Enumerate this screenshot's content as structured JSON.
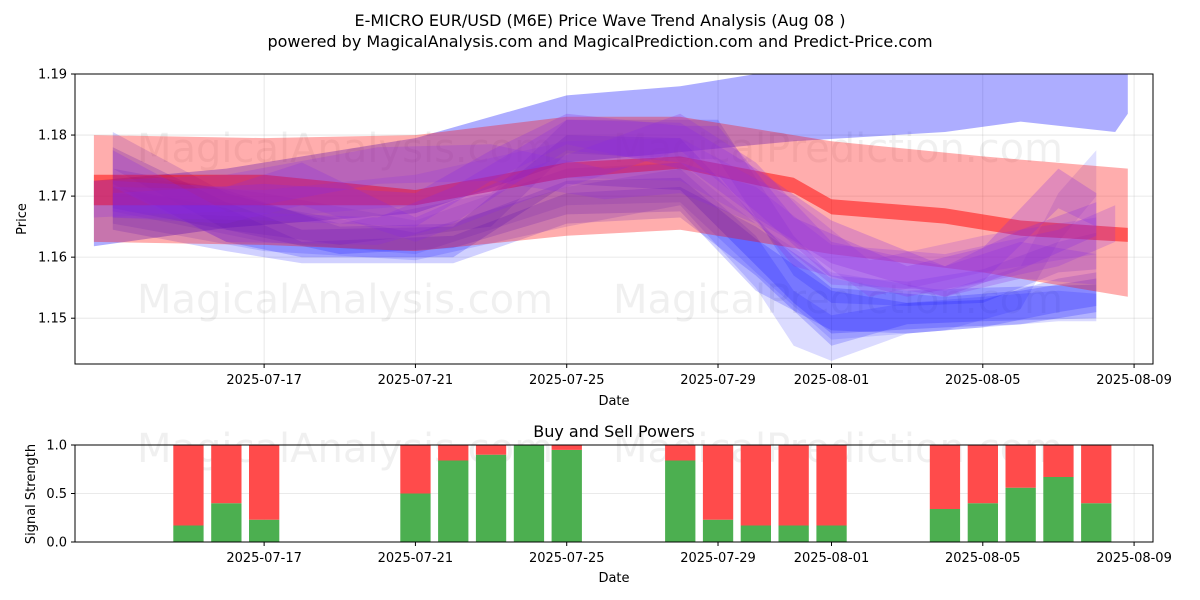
{
  "header": {
    "title": "E-MICRO EUR/USD (M6E) Price Wave Trend Analysis (Aug 08 )",
    "subtitle": "powered by MagicalAnalysis.com and MagicalPrediction.com and Predict-Price.com"
  },
  "watermarks": [
    "MagicalAnalysis.com",
    "MagicalPrediction.com"
  ],
  "chart_data": [
    {
      "type": "area",
      "xlabel": "Date",
      "ylabel": "Price",
      "ylim": [
        1.1425,
        1.19
      ],
      "xlim": [
        "2025-07-12T00:00",
        "2025-08-09T12:00"
      ],
      "yticks": [
        1.15,
        1.16,
        1.17,
        1.18,
        1.19
      ],
      "xticks": [
        "2025-07-17",
        "2025-07-21",
        "2025-07-25",
        "2025-07-29",
        "2025-08-01",
        "2025-08-05",
        "2025-08-09"
      ],
      "grid": true,
      "colors": {
        "blue": "#0000ff",
        "red": "#ff0000",
        "purple": "#8a2be2"
      },
      "series": [
        {
          "color": "#0000ff",
          "opacity": 0.32,
          "points": [
            [
              "2025-07-12T12:00",
              1.1725,
              1.1618
            ],
            [
              "2025-07-16",
              1.1745,
              1.1648
            ],
            [
              "2025-07-21",
              1.1795,
              1.1672
            ],
            [
              "2025-07-25",
              1.1865,
              1.1755
            ],
            [
              "2025-07-28",
              1.188,
              1.1772
            ],
            [
              "2025-07-31",
              1.191,
              1.179
            ],
            [
              "2025-08-04",
              1.192,
              1.1805
            ],
            [
              "2025-08-06",
              1.193,
              1.1822
            ],
            [
              "2025-08-08T12:00",
              1.194,
              1.1805
            ],
            [
              "2025-08-08T20:00",
              1.19,
              1.1835
            ]
          ]
        },
        {
          "color": "#0000ff",
          "opacity": 0.18,
          "points": [
            [
              "2025-07-13",
              1.1715,
              1.1645
            ],
            [
              "2025-07-16",
              1.168,
              1.161
            ],
            [
              "2025-07-18",
              1.1625,
              1.159
            ],
            [
              "2025-07-22",
              1.1635,
              1.159
            ],
            [
              "2025-07-25",
              1.1705,
              1.1655
            ],
            [
              "2025-07-28",
              1.1715,
              1.1665
            ],
            [
              "2025-07-30",
              1.165,
              1.157
            ],
            [
              "2025-08-01",
              1.1565,
              1.1455
            ],
            [
              "2025-08-03",
              1.1545,
              1.149
            ],
            [
              "2025-08-05",
              1.155,
              1.1495
            ],
            [
              "2025-08-08",
              1.1555,
              1.15
            ]
          ]
        },
        {
          "color": "#0000ff",
          "opacity": 0.18,
          "points": [
            [
              "2025-07-13",
              1.1745,
              1.168
            ],
            [
              "2025-07-16",
              1.171,
              1.1645
            ],
            [
              "2025-07-19",
              1.165,
              1.1605
            ],
            [
              "2025-07-22",
              1.1655,
              1.1615
            ],
            [
              "2025-07-25",
              1.1725,
              1.167
            ],
            [
              "2025-07-28",
              1.173,
              1.1675
            ],
            [
              "2025-07-30",
              1.163,
              1.1545
            ],
            [
              "2025-08-01",
              1.1545,
              1.148
            ],
            [
              "2025-08-03",
              1.1525,
              1.1475
            ],
            [
              "2025-08-05",
              1.153,
              1.1485
            ],
            [
              "2025-08-07",
              1.1565,
              1.151
            ],
            [
              "2025-08-08",
              1.1575,
              1.152
            ]
          ]
        },
        {
          "color": "#0000ff",
          "opacity": 0.2,
          "points": [
            [
              "2025-07-13",
              1.178,
              1.172
            ],
            [
              "2025-07-16",
              1.169,
              1.1625
            ],
            [
              "2025-07-18",
              1.1645,
              1.16
            ],
            [
              "2025-07-22",
              1.165,
              1.16
            ],
            [
              "2025-07-25",
              1.18,
              1.172
            ],
            [
              "2025-07-28",
              1.1795,
              1.171
            ],
            [
              "2025-07-31",
              1.16,
              1.1525
            ],
            [
              "2025-08-01",
              1.155,
              1.1475
            ],
            [
              "2025-08-04",
              1.1535,
              1.1485
            ],
            [
              "2025-08-06",
              1.1545,
              1.149
            ],
            [
              "2025-08-08",
              1.1565,
              1.151
            ]
          ]
        },
        {
          "color": "#0000ff",
          "opacity": 0.16,
          "points": [
            [
              "2025-07-13",
              1.1805,
              1.1745
            ],
            [
              "2025-07-16",
              1.1705,
              1.1645
            ],
            [
              "2025-07-19",
              1.1655,
              1.162
            ],
            [
              "2025-07-23",
              1.1705,
              1.165
            ],
            [
              "2025-07-25",
              1.1825,
              1.177
            ],
            [
              "2025-07-29",
              1.1825,
              1.176
            ],
            [
              "2025-07-31",
              1.1635,
              1.157
            ],
            [
              "2025-08-01",
              1.157,
              1.1525
            ],
            [
              "2025-08-03",
              1.156,
              1.152
            ],
            [
              "2025-08-05",
              1.158,
              1.1525
            ],
            [
              "2025-08-07",
              1.1625,
              1.1575
            ],
            [
              "2025-08-08",
              1.164,
              1.158
            ]
          ]
        },
        {
          "color": "#0000ff",
          "opacity": 0.14,
          "points": [
            [
              "2025-07-13",
              1.1705,
              1.1655
            ],
            [
              "2025-07-17",
              1.1685,
              1.161
            ],
            [
              "2025-07-21",
              1.164,
              1.1595
            ],
            [
              "2025-07-25",
              1.1715,
              1.165
            ],
            [
              "2025-07-28",
              1.1745,
              1.1685
            ],
            [
              "2025-07-30",
              1.1635,
              1.155
            ],
            [
              "2025-07-31",
              1.1545,
              1.1455
            ],
            [
              "2025-08-01",
              1.1505,
              1.143
            ],
            [
              "2025-08-03",
              1.1525,
              1.1475
            ],
            [
              "2025-08-07",
              1.1545,
              1.1495
            ],
            [
              "2025-08-08",
              1.154,
              1.1495
            ]
          ]
        },
        {
          "color": "#0000ff",
          "opacity": 0.12,
          "points": [
            [
              "2025-07-13",
              1.1735,
              1.1675
            ],
            [
              "2025-07-17",
              1.1705,
              1.1625
            ],
            [
              "2025-07-21",
              1.166,
              1.1605
            ],
            [
              "2025-07-25",
              1.1745,
              1.1685
            ],
            [
              "2025-07-28",
              1.1755,
              1.169
            ],
            [
              "2025-07-30",
              1.1655,
              1.1575
            ],
            [
              "2025-08-01",
              1.1575,
              1.1465
            ],
            [
              "2025-08-04",
              1.1545,
              1.148
            ],
            [
              "2025-08-06",
              1.1585,
              1.1515
            ],
            [
              "2025-08-07",
              1.1705,
              1.1625
            ],
            [
              "2025-08-08",
              1.1775,
              1.17
            ]
          ]
        },
        {
          "color": "#ff0000",
          "opacity": 0.32,
          "points": [
            [
              "2025-07-12T12:00",
              1.18,
              1.1625
            ],
            [
              "2025-07-17",
              1.1795,
              1.162
            ],
            [
              "2025-07-21",
              1.18,
              1.161
            ],
            [
              "2025-07-25",
              1.183,
              1.1635
            ],
            [
              "2025-07-28",
              1.183,
              1.1645
            ],
            [
              "2025-08-01",
              1.179,
              1.1605
            ],
            [
              "2025-08-05",
              1.1765,
              1.1575
            ],
            [
              "2025-08-08T20:00",
              1.1745,
              1.1535
            ]
          ]
        },
        {
          "color": "#ff0000",
          "opacity": 0.5,
          "points": [
            [
              "2025-07-12T12:00",
              1.1735,
              1.1685
            ],
            [
              "2025-07-17",
              1.1735,
              1.1685
            ],
            [
              "2025-07-21",
              1.171,
              1.1685
            ],
            [
              "2025-07-25",
              1.1755,
              1.173
            ],
            [
              "2025-07-28",
              1.1765,
              1.1745
            ],
            [
              "2025-07-31",
              1.173,
              1.1705
            ],
            [
              "2025-08-01",
              1.1695,
              1.167
            ],
            [
              "2025-08-04",
              1.168,
              1.1655
            ],
            [
              "2025-08-06",
              1.166,
              1.1635
            ],
            [
              "2025-08-08T20:00",
              1.1648,
              1.1625
            ]
          ]
        },
        {
          "color": "#8a2be2",
          "opacity": 0.26,
          "points": [
            [
              "2025-07-13",
              1.1775,
              1.1715
            ],
            [
              "2025-07-16",
              1.1675,
              1.1625
            ],
            [
              "2025-07-20",
              1.1665,
              1.162
            ],
            [
              "2025-07-22",
              1.1715,
              1.1655
            ],
            [
              "2025-07-25",
              1.1825,
              1.1775
            ],
            [
              "2025-07-28",
              1.182,
              1.1755
            ],
            [
              "2025-07-30",
              1.1745,
              1.1665
            ],
            [
              "2025-08-01",
              1.166,
              1.159
            ],
            [
              "2025-08-04",
              1.1585,
              1.1535
            ],
            [
              "2025-08-06",
              1.1645,
              1.158
            ],
            [
              "2025-08-08",
              1.169,
              1.1635
            ]
          ]
        },
        {
          "color": "#8a2be2",
          "opacity": 0.26,
          "points": [
            [
              "2025-07-13",
              1.1705,
              1.1665
            ],
            [
              "2025-07-17",
              1.172,
              1.166
            ],
            [
              "2025-07-21",
              1.1705,
              1.165
            ],
            [
              "2025-07-23",
              1.1775,
              1.1725
            ],
            [
              "2025-07-25",
              1.1835,
              1.1785
            ],
            [
              "2025-07-28",
              1.1815,
              1.1745
            ],
            [
              "2025-07-29",
              1.1815,
              1.1735
            ],
            [
              "2025-07-31",
              1.1665,
              1.1585
            ],
            [
              "2025-08-03",
              1.1585,
              1.1535
            ],
            [
              "2025-08-05",
              1.1615,
              1.156
            ],
            [
              "2025-08-07",
              1.1745,
              1.168
            ],
            [
              "2025-08-08",
              1.1705,
              1.165
            ]
          ]
        },
        {
          "color": "#8a2be2",
          "opacity": 0.24,
          "points": [
            [
              "2025-07-13",
              1.1725,
              1.1665
            ],
            [
              "2025-07-16",
              1.1715,
              1.1655
            ],
            [
              "2025-07-18",
              1.1755,
              1.1685
            ],
            [
              "2025-07-21",
              1.1665,
              1.1625
            ],
            [
              "2025-07-24",
              1.1745,
              1.1695
            ],
            [
              "2025-07-28",
              1.1835,
              1.1775
            ],
            [
              "2025-07-30",
              1.1755,
              1.1675
            ],
            [
              "2025-08-01",
              1.1625,
              1.1565
            ],
            [
              "2025-08-04",
              1.1585,
              1.1535
            ],
            [
              "2025-08-06",
              1.1625,
              1.1565
            ],
            [
              "2025-08-08",
              1.1605,
              1.1555
            ]
          ]
        },
        {
          "color": "#8a2be2",
          "opacity": 0.22,
          "points": [
            [
              "2025-07-12T12:00",
              1.1725,
              1.1665
            ],
            [
              "2025-07-16",
              1.1735,
              1.1675
            ],
            [
              "2025-07-20",
              1.178,
              1.172
            ],
            [
              "2025-07-23",
              1.1785,
              1.1725
            ],
            [
              "2025-07-26",
              1.1745,
              1.1695
            ],
            [
              "2025-07-28",
              1.1755,
              1.1705
            ],
            [
              "2025-07-30",
              1.1715,
              1.1655
            ],
            [
              "2025-08-01",
              1.162,
              1.1555
            ],
            [
              "2025-08-04",
              1.1605,
              1.1545
            ],
            [
              "2025-08-07",
              1.1645,
              1.1585
            ],
            [
              "2025-08-08T12:00",
              1.1685,
              1.1625
            ]
          ]
        },
        {
          "color": "#8a2be2",
          "opacity": 0.2,
          "points": [
            [
              "2025-07-13",
              1.1715,
              1.1675
            ],
            [
              "2025-07-17",
              1.171,
              1.1665
            ],
            [
              "2025-07-21",
              1.1735,
              1.1685
            ],
            [
              "2025-07-25",
              1.179,
              1.173
            ],
            [
              "2025-07-28",
              1.1795,
              1.1725
            ],
            [
              "2025-07-31",
              1.1695,
              1.1625
            ],
            [
              "2025-08-02",
              1.1595,
              1.1535
            ],
            [
              "2025-08-05",
              1.1635,
              1.1575
            ],
            [
              "2025-08-08",
              1.1665,
              1.1605
            ]
          ]
        }
      ]
    },
    {
      "type": "bar",
      "title": "Buy and Sell Powers",
      "xlabel": "Date",
      "ylabel": "Signal Strength",
      "ylim": [
        0,
        1.0
      ],
      "yticks": [
        "0.0",
        "0.5",
        "1.0"
      ],
      "xlim": [
        "2025-07-12T00:00",
        "2025-08-09T12:00"
      ],
      "xticks": [
        "2025-07-17",
        "2025-07-21",
        "2025-07-25",
        "2025-07-29",
        "2025-08-01",
        "2025-08-05",
        "2025-08-09"
      ],
      "grid": true,
      "colors": {
        "buy": "#4caf50",
        "sell": "#ff4b4b"
      },
      "categories": [
        "2025-07-15",
        "2025-07-16",
        "2025-07-17",
        "2025-07-21",
        "2025-07-22",
        "2025-07-23",
        "2025-07-24",
        "2025-07-25",
        "2025-07-28",
        "2025-07-29",
        "2025-07-30",
        "2025-07-31",
        "2025-08-01",
        "2025-08-04",
        "2025-08-05",
        "2025-08-06",
        "2025-08-07",
        "2025-08-08"
      ],
      "buy": [
        0.17,
        0.4,
        0.23,
        0.5,
        0.84,
        0.9,
        1.0,
        0.95,
        0.84,
        0.23,
        0.17,
        0.17,
        0.17,
        0.34,
        0.4,
        0.56,
        0.67,
        0.4
      ],
      "sell": [
        0.83,
        0.6,
        0.77,
        0.5,
        0.16,
        0.1,
        0.0,
        0.05,
        0.16,
        0.77,
        0.83,
        0.83,
        0.83,
        0.66,
        0.6,
        0.44,
        0.33,
        0.6
      ]
    }
  ]
}
